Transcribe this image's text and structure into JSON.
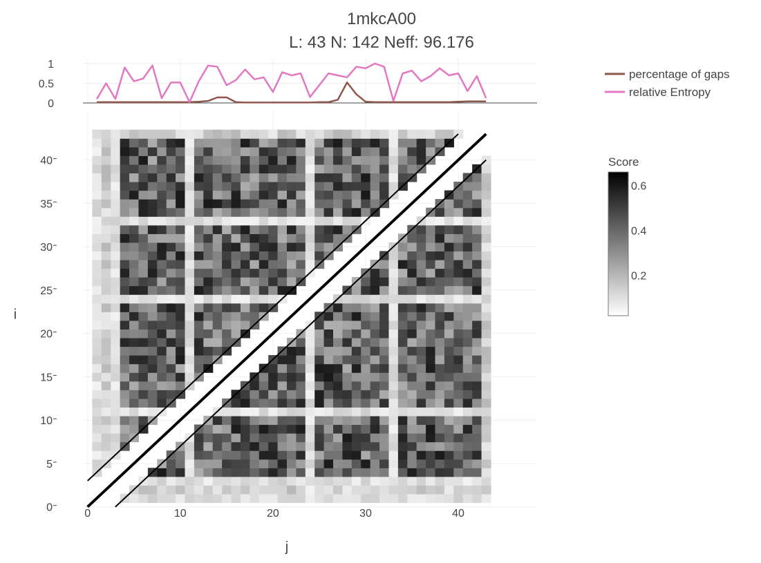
{
  "title": "1mkcA00",
  "subtitle": "L: 43 N: 142 Neff: 96.176",
  "chart_data": [
    {
      "type": "line",
      "x": [
        1,
        2,
        3,
        4,
        5,
        6,
        7,
        8,
        9,
        10,
        11,
        12,
        13,
        14,
        15,
        16,
        17,
        18,
        19,
        20,
        21,
        22,
        23,
        24,
        25,
        26,
        27,
        28,
        29,
        30,
        31,
        32,
        33,
        34,
        35,
        36,
        37,
        38,
        39,
        40,
        41,
        42,
        43
      ],
      "series": [
        {
          "name": "percentage of gaps",
          "color": "#8c564b",
          "values": [
            0.02,
            0.02,
            0.02,
            0.02,
            0.02,
            0.02,
            0.02,
            0.02,
            0.02,
            0.02,
            0.02,
            0.03,
            0.05,
            0.14,
            0.14,
            0.02,
            0.01,
            0.01,
            0.01,
            0.01,
            0.01,
            0.01,
            0.01,
            0.01,
            0.02,
            0.02,
            0.08,
            0.52,
            0.22,
            0.03,
            0.02,
            0.02,
            0.02,
            0.02,
            0.02,
            0.02,
            0.02,
            0.02,
            0.02,
            0.03,
            0.04,
            0.04,
            0.04
          ]
        },
        {
          "name": "relative Entropy",
          "color": "#e377c2",
          "values": [
            0.1,
            0.5,
            0.1,
            0.9,
            0.55,
            0.62,
            0.95,
            0.12,
            0.52,
            0.52,
            0.02,
            0.55,
            0.95,
            0.92,
            0.45,
            0.58,
            0.85,
            0.6,
            0.65,
            0.28,
            0.78,
            0.7,
            0.75,
            0.15,
            0.45,
            0.75,
            0.7,
            0.65,
            0.92,
            0.88,
            1.0,
            0.92,
            0.05,
            0.75,
            0.82,
            0.55,
            0.68,
            0.88,
            0.7,
            0.75,
            0.3,
            0.68,
            0.12
          ]
        }
      ],
      "y_ticks": [
        "1",
        "0.5",
        "0"
      ],
      "ylim": [
        0,
        1
      ],
      "legend": "top-right"
    },
    {
      "type": "heatmap",
      "xlabel": "j",
      "ylabel": "i",
      "x_ticks": [
        "0",
        "10",
        "20",
        "30",
        "40"
      ],
      "y_ticks": [
        "0",
        "5",
        "10",
        "15",
        "20",
        "25",
        "30",
        "35",
        "40"
      ],
      "xlim": [
        -0.5,
        48.5
      ],
      "ylim": [
        -0.5,
        46.5
      ],
      "size": 43,
      "diagonal_gap": 2,
      "colorscale": "greys",
      "colorbar_title": "Score",
      "colorbar_ticks": [
        "0.6",
        "0.4",
        "0.2"
      ],
      "zmin": 0.02,
      "zmax": 0.66,
      "low_rows": [
        1,
        3,
        11,
        24,
        33
      ],
      "diagonal_lines": [
        "y = x",
        "y = x + 3",
        "y = x - 3"
      ]
    }
  ]
}
